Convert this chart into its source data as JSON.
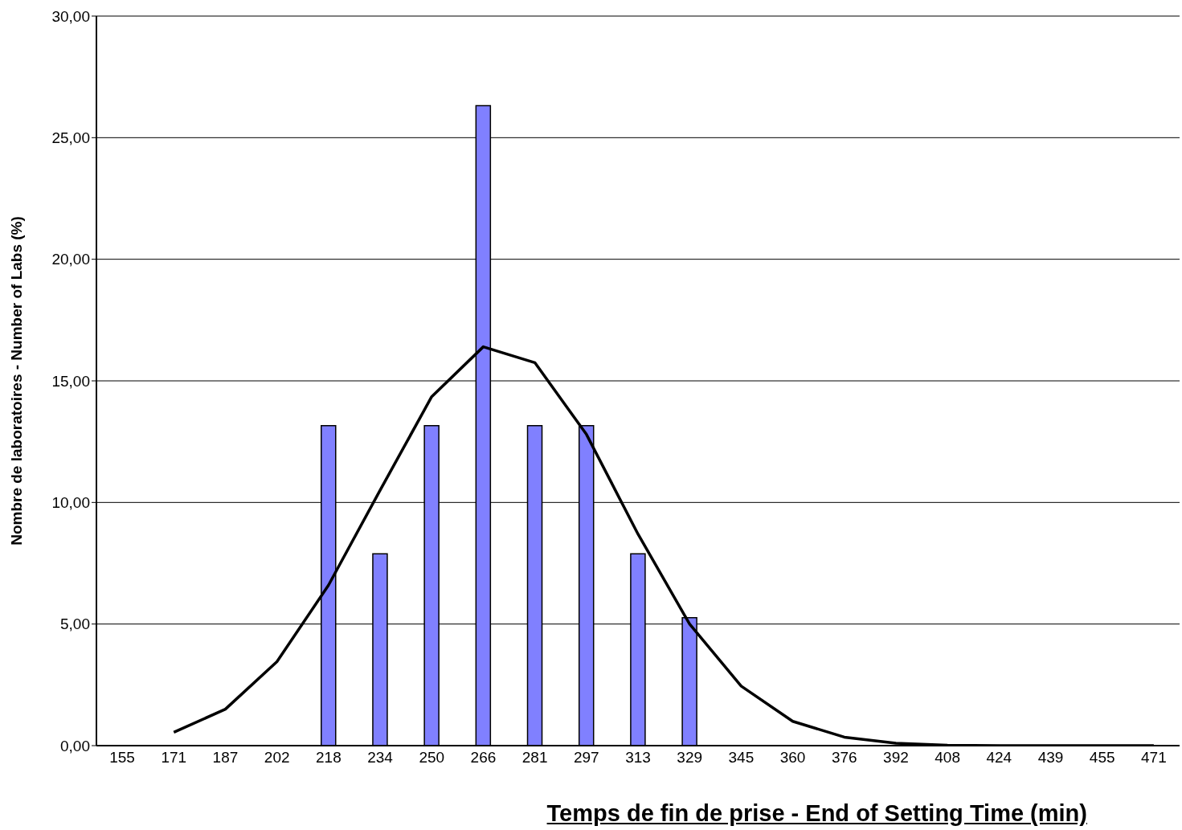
{
  "chart_data": {
    "type": "bar",
    "xlabel": "Temps de fin de prise - End of Setting Time (min)",
    "ylabel": "Nombre de laboratoires - Number of Labs (%)",
    "categories": [
      "155",
      "171",
      "187",
      "202",
      "218",
      "234",
      "250",
      "266",
      "281",
      "297",
      "313",
      "329",
      "345",
      "360",
      "376",
      "392",
      "408",
      "424",
      "439",
      "455",
      "471"
    ],
    "series": [
      {
        "color": "#8080ff",
        "values": [
          0,
          0,
          0,
          0,
          13.16,
          7.89,
          13.16,
          26.32,
          13.16,
          13.16,
          7.89,
          5.26,
          0,
          0,
          0,
          0,
          0,
          0,
          0,
          0,
          0
        ]
      },
      {
        "type": "line",
        "color": "#000000",
        "values": [
          null,
          0.55,
          1.5,
          3.45,
          6.6,
          10.5,
          14.35,
          16.4,
          15.75,
          12.8,
          8.7,
          5.0,
          2.45,
          1.0,
          0.35,
          0.1,
          0.02,
          0,
          0,
          0,
          0
        ]
      }
    ],
    "ylim": [
      0,
      30
    ],
    "yticks": [
      {
        "value": 0,
        "label": "0,00"
      },
      {
        "value": 5,
        "label": "5,00"
      },
      {
        "value": 10,
        "label": "10,00"
      },
      {
        "value": 15,
        "label": "15,00"
      },
      {
        "value": 20,
        "label": "20,00"
      },
      {
        "value": 25,
        "label": "25,00"
      },
      {
        "value": 30,
        "label": "30,00"
      }
    ],
    "grid": "y",
    "legend": false,
    "marker": "none",
    "line_style": "solid"
  }
}
